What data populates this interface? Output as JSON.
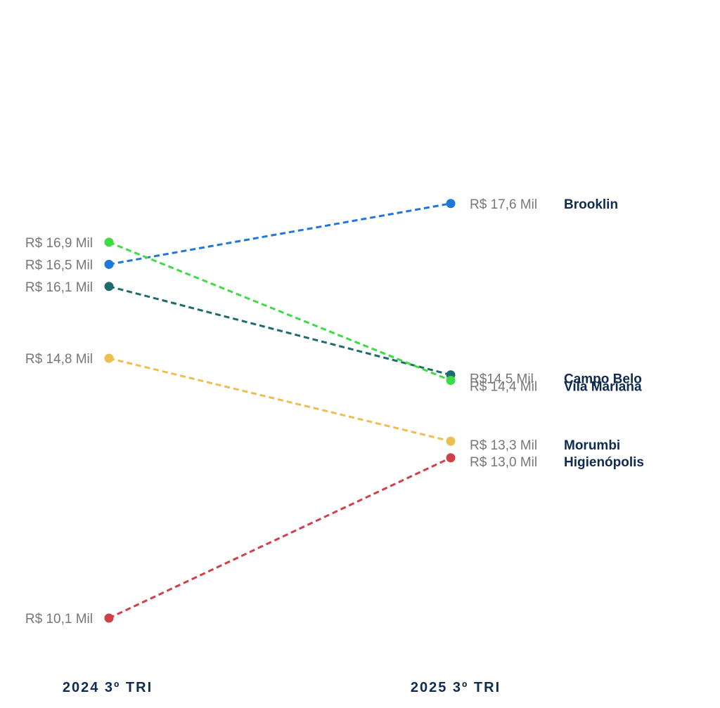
{
  "chart_data": {
    "type": "slope",
    "title": "",
    "periods": [
      "2024 3º TRI",
      "2025 3º TRI"
    ],
    "unit": "R$ Mil",
    "series": [
      {
        "name": "Brooklin",
        "values": [
          16.5,
          17.6
        ],
        "labels": [
          "R$ 16,5 Mil",
          "R$ 17,6 Mil"
        ],
        "color": "#1f78d8"
      },
      {
        "name": "Campo Belo",
        "values": [
          16.1,
          14.5
        ],
        "labels": [
          "R$ 16,1 Mil",
          "R$14,5 Mil"
        ],
        "color": "#1e6b6e"
      },
      {
        "name": "Vila Mariana",
        "values": [
          16.9,
          14.4
        ],
        "labels": [
          "R$ 16,9 Mil",
          "R$ 14,4 Mil"
        ],
        "color": "#3ddc46"
      },
      {
        "name": "Morumbi",
        "values": [
          14.8,
          13.3
        ],
        "labels": [
          "R$ 14,8 Mil",
          "R$ 13,3 Mil"
        ],
        "color": "#edbe50"
      },
      {
        "name": "Higienópolis",
        "values": [
          10.1,
          13.0
        ],
        "labels": [
          "R$ 10,1 Mil",
          "R$ 13,0 Mil"
        ],
        "color": "#d33f49"
      }
    ]
  }
}
